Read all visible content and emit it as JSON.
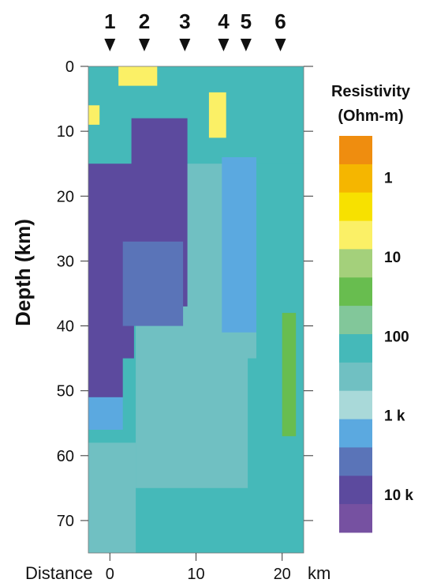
{
  "chart_data": {
    "type": "heatmap",
    "title": "",
    "xlabel": "Distance",
    "xunit": "km",
    "ylabel": "Depth (km)",
    "x_range": [
      -2.5,
      22.5
    ],
    "y_range": [
      0,
      75
    ],
    "x_ticks": [
      0,
      10,
      20
    ],
    "y_ticks": [
      0,
      10,
      20,
      30,
      40,
      50,
      60,
      70
    ],
    "station_markers": [
      {
        "label": "1",
        "x": 0
      },
      {
        "label": "2",
        "x": 4
      },
      {
        "label": "3",
        "x": 8.7
      },
      {
        "label": "4",
        "x": 13.2
      },
      {
        "label": "5",
        "x": 15.8
      },
      {
        "label": "6",
        "x": 19.8
      }
    ],
    "colorbar": {
      "title_line1": "Resistivity",
      "title_line2": "(Ohm-m)",
      "scale": "log",
      "tick_labels": [
        "1",
        "10",
        "100",
        "1 k",
        "10 k"
      ],
      "colors": [
        "#ef8d0f",
        "#f5b600",
        "#f7e100",
        "#fbf066",
        "#a4d07b",
        "#68bd4f",
        "#82c79a",
        "#45b9b9",
        "#70c0c2",
        "#a9d9d9",
        "#5ba9e0",
        "#5a74b8",
        "#5c4a9e",
        "#7651a1"
      ]
    },
    "resistivity_regions_ohm_m": [
      {
        "region": "background",
        "x": [
          -2.5,
          22.5
        ],
        "depth": [
          0,
          75
        ],
        "value": 150
      },
      {
        "region": "deep-conductor-left",
        "x": [
          -2.5,
          3
        ],
        "depth": [
          58,
          75
        ],
        "value": 250
      },
      {
        "region": "deep-body-center",
        "x": [
          3,
          16
        ],
        "depth": [
          40,
          65
        ],
        "value": 300
      },
      {
        "region": "upper-center-wedge",
        "x": [
          6.5,
          17
        ],
        "depth": [
          10,
          45
        ],
        "value": 350
      },
      {
        "region": "shallow-layer",
        "x": [
          -2.5,
          22.5
        ],
        "depth": [
          0,
          15
        ],
        "value": 200
      },
      {
        "region": "resistor-left",
        "x": [
          -2.5,
          2.8
        ],
        "depth": [
          15,
          45
        ],
        "value": 10000
      },
      {
        "region": "resistor-left-lower",
        "x": [
          -2.5,
          1.5
        ],
        "depth": [
          43,
          51
        ],
        "value": 6000
      },
      {
        "region": "resistor-left-lower-2",
        "x": [
          -2.5,
          1.5
        ],
        "depth": [
          51,
          56
        ],
        "value": 1500
      },
      {
        "region": "resistor-center",
        "x": [
          2.5,
          9
        ],
        "depth": [
          8,
          37
        ],
        "value": 8000
      },
      {
        "region": "resistor-center-flank",
        "x": [
          1.5,
          8.5
        ],
        "depth": [
          27,
          40
        ],
        "value": 5000
      },
      {
        "region": "resistive-band-right",
        "x": [
          13,
          17
        ],
        "depth": [
          14,
          41
        ],
        "value": 1500
      },
      {
        "region": "conductor-near-surface-2",
        "x": [
          1,
          5.5
        ],
        "depth": [
          0,
          3
        ],
        "value": 6
      },
      {
        "region": "conductor-near-station-4",
        "x": [
          11.5,
          13.5
        ],
        "depth": [
          4,
          11
        ],
        "value": 8
      },
      {
        "region": "conductor-left-edge",
        "x": [
          -2.5,
          -1.2
        ],
        "depth": [
          6,
          9
        ],
        "value": 8
      },
      {
        "region": "conductor-right-edge",
        "x": [
          20,
          21.6
        ],
        "depth": [
          38,
          57
        ],
        "value": 30
      }
    ]
  }
}
